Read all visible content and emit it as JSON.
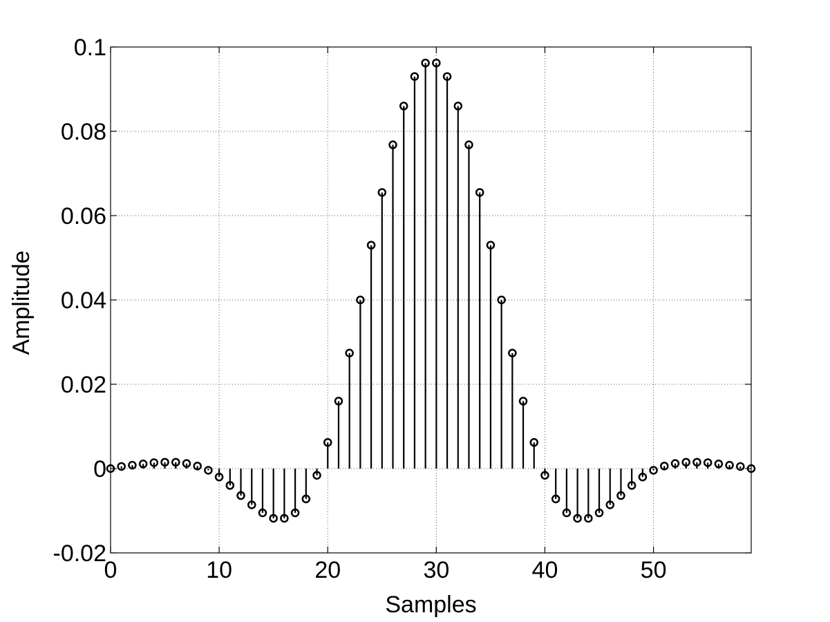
{
  "chart_data": {
    "type": "stem",
    "title": "",
    "xlabel": "Samples",
    "ylabel": "Amplitude",
    "xlim": [
      0,
      59
    ],
    "ylim": [
      -0.02,
      0.1
    ],
    "xticks": [
      0,
      10,
      20,
      30,
      40,
      50
    ],
    "xtick_labels": [
      "0",
      "10",
      "20",
      "30",
      "40",
      "50"
    ],
    "yticks": [
      -0.02,
      0,
      0.02,
      0.04,
      0.06,
      0.08,
      0.1
    ],
    "ytick_labels": [
      "-0.02",
      "0",
      "0.02",
      "0.04",
      "0.06",
      "0.08",
      "0.1"
    ],
    "grid": true,
    "marker": "circle",
    "color": "#000000",
    "x": [
      0,
      1,
      2,
      3,
      4,
      5,
      6,
      7,
      8,
      9,
      10,
      11,
      12,
      13,
      14,
      15,
      16,
      17,
      18,
      19,
      20,
      21,
      22,
      23,
      24,
      25,
      26,
      27,
      28,
      29,
      30,
      31,
      32,
      33,
      34,
      35,
      36,
      37,
      38,
      39,
      40,
      41,
      42,
      43,
      44,
      45,
      46,
      47,
      48,
      49,
      50,
      51,
      52,
      53,
      54,
      55,
      56,
      57,
      58,
      59
    ],
    "values": [
      0,
      0.0005,
      0.0008,
      0.0011,
      0.0014,
      0.0015,
      0.0015,
      0.0012,
      0.0006,
      -0.0004,
      -0.002,
      -0.004,
      -0.0064,
      -0.0086,
      -0.0105,
      -0.0118,
      -0.0118,
      -0.0105,
      -0.0072,
      -0.0016,
      0.0062,
      0.016,
      0.0274,
      0.04,
      0.053,
      0.0655,
      0.0768,
      0.086,
      0.093,
      0.0962,
      0.0962,
      0.093,
      0.086,
      0.0768,
      0.0655,
      0.053,
      0.04,
      0.0274,
      0.016,
      0.0062,
      -0.0016,
      -0.0072,
      -0.0105,
      -0.0118,
      -0.0118,
      -0.0105,
      -0.0086,
      -0.0064,
      -0.004,
      -0.002,
      -0.0004,
      0.0006,
      0.0012,
      0.0015,
      0.0015,
      0.0014,
      0.0011,
      0.0008,
      0.0005,
      0
    ]
  }
}
